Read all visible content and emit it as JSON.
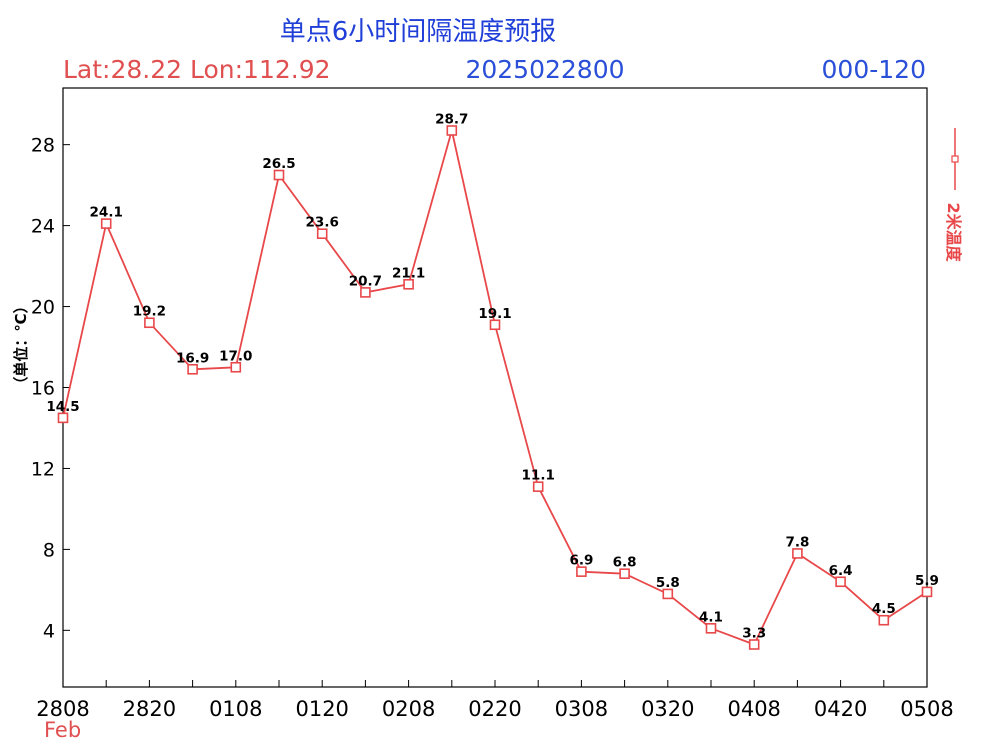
{
  "header": {
    "title": "单点6小时间隔温度预报",
    "location": "Lat:28.22 Lon:112.92",
    "init_time": "2025022800",
    "lead_range": "000-120"
  },
  "colors": {
    "title": "#1f3fd8",
    "location": "#e05050",
    "init_time": "#2a4fd8",
    "lead_range": "#2a4fd8",
    "series": "#e8484a",
    "axis": "#000000",
    "month_label": "#e05050"
  },
  "chart_data": {
    "type": "line",
    "ylabel": "（单位：℃）",
    "ylim": [
      1.2,
      30.8
    ],
    "yticks": [
      4,
      8,
      12,
      16,
      20,
      24,
      28
    ],
    "x_tick_labels": [
      "2808",
      "2820",
      "0108",
      "0120",
      "0208",
      "0220",
      "0308",
      "0320",
      "0408",
      "0420",
      "0508"
    ],
    "x_month_label": "Feb",
    "legend": {
      "label": "2米温度",
      "position": "right"
    },
    "series": [
      {
        "name": "2米温度",
        "marker": "square",
        "values": [
          14.5,
          24.1,
          19.2,
          16.9,
          17.0,
          26.5,
          23.6,
          20.7,
          21.1,
          28.7,
          19.1,
          11.1,
          6.9,
          6.8,
          5.8,
          4.1,
          3.3,
          7.8,
          6.4,
          4.5,
          5.9
        ],
        "labels": [
          "14.5",
          "24.1",
          "19.2",
          "16.9",
          "17.0",
          "26.5",
          "23.6",
          "20.7",
          "21.1",
          "28.7",
          "19.1",
          "11.1",
          "6.9",
          "6.8",
          "5.8",
          "4.1",
          "3.3",
          "7.8",
          "6.4",
          "4.5",
          "5.9"
        ]
      }
    ]
  }
}
